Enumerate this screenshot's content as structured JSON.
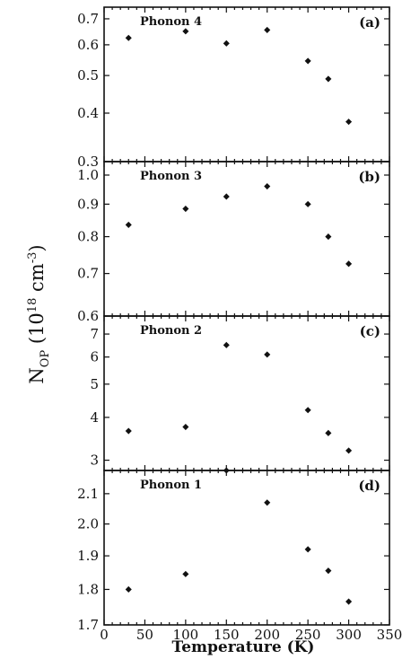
{
  "chart_data": {
    "type": "scatter",
    "xlabel": "Temperature (K)",
    "ylabel": "N_OP (10^18 cm^-3)",
    "ylabel_parts": {
      "base": "N",
      "sub": "OP",
      "open": " (10",
      "sup1": "18",
      "unit": " cm",
      "sup2": "-3",
      "close": ")"
    },
    "xlim": [
      0,
      350
    ],
    "xticks": [
      0,
      50,
      100,
      150,
      200,
      250,
      300,
      350
    ],
    "panels": [
      {
        "id": "a",
        "tag": "(a)",
        "title": "Phonon  4",
        "yscale": "log",
        "ylim": [
          0.3,
          0.75
        ],
        "yticks": [
          0.3,
          0.4,
          0.5,
          0.6,
          0.7
        ],
        "yticklabels": [
          "0.3",
          "0.4",
          "0.5",
          "0.6",
          "0.7"
        ],
        "x": [
          30,
          100,
          150,
          200,
          250,
          275,
          300
        ],
        "y": [
          0.625,
          0.65,
          0.605,
          0.655,
          0.545,
          0.49,
          0.38
        ]
      },
      {
        "id": "b",
        "tag": "(b)",
        "title": "Phonon  3",
        "yscale": "log",
        "ylim": [
          0.6,
          1.05
        ],
        "yticks": [
          0.6,
          0.7,
          0.8,
          0.9,
          1.0
        ],
        "yticklabels": [
          "0.6",
          "0.7",
          "0.8",
          "0.9",
          "1.0"
        ],
        "x": [
          30,
          100,
          150,
          200,
          250,
          275,
          300
        ],
        "y": [
          0.835,
          0.885,
          0.925,
          0.96,
          0.9,
          0.8,
          0.725
        ]
      },
      {
        "id": "c",
        "tag": "(c)",
        "title": "Phonon  2",
        "yscale": "log",
        "ylim": [
          2.8,
          7.9
        ],
        "yticks": [
          3,
          4,
          5,
          6,
          7
        ],
        "yticklabels": [
          "3",
          "4",
          "5",
          "6",
          "7"
        ],
        "x": [
          30,
          100,
          150,
          200,
          250,
          275,
          300
        ],
        "y": [
          3.65,
          3.75,
          6.5,
          6.1,
          4.2,
          3.6,
          3.2
        ]
      },
      {
        "id": "d",
        "tag": "(d)",
        "title": "Phonon  1",
        "yscale": "log",
        "ylim": [
          1.7,
          2.18
        ],
        "yticks": [
          1.7,
          1.8,
          1.9,
          2.0,
          2.1
        ],
        "yticklabels": [
          "1.7",
          "1.8",
          "1.9",
          "2.0",
          "2.1"
        ],
        "x": [
          30,
          100,
          150,
          200,
          250,
          275,
          300
        ],
        "y": [
          1.8,
          1.845,
          2.18,
          2.07,
          1.92,
          1.855,
          1.765
        ]
      }
    ],
    "grid": false,
    "legend": "none"
  }
}
